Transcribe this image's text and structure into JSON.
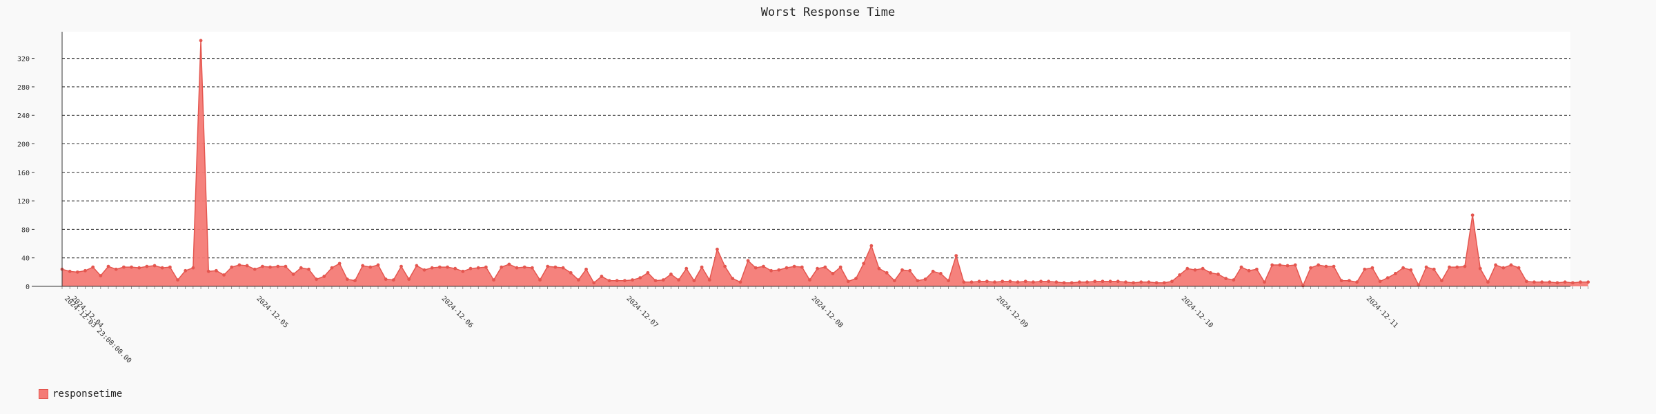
{
  "chart_data": {
    "type": "area",
    "title": "Worst Response Time",
    "xlabel": "",
    "ylabel": "",
    "ylim": [
      0,
      345
    ],
    "yticks": [
      0,
      40,
      80,
      120,
      160,
      200,
      240,
      280,
      320
    ],
    "grid": "horizontal dashed",
    "legend_position": "bottom-left",
    "x_start_label": "2024-12-03 23:00:00.00",
    "day_labels": [
      "2024-12-04",
      "2024-12-05",
      "2024-12-06",
      "2024-12-07",
      "2024-12-08",
      "2024-12-09",
      "2024-12-10",
      "2024-12-11"
    ],
    "x_hours_note": "one point per hour starting 2024-12-03 23:00",
    "series": [
      {
        "name": "responsetime",
        "color": "#f47b76",
        "line_color": "#e4564f",
        "values": [
          24,
          21,
          20,
          22,
          27,
          15,
          28,
          24,
          27,
          27,
          26,
          28,
          29,
          26,
          27,
          9,
          22,
          26,
          345,
          21,
          22,
          16,
          27,
          30,
          29,
          24,
          28,
          27,
          28,
          28,
          17,
          26,
          24,
          10,
          14,
          26,
          32,
          10,
          8,
          29,
          27,
          30,
          10,
          9,
          28,
          10,
          29,
          23,
          26,
          27,
          27,
          25,
          21,
          25,
          26,
          27,
          9,
          27,
          31,
          26,
          27,
          26,
          9,
          28,
          27,
          26,
          19,
          9,
          24,
          5,
          14,
          8,
          8,
          8,
          9,
          12,
          19,
          8,
          9,
          17,
          9,
          25,
          8,
          27,
          9,
          52,
          28,
          11,
          6,
          36,
          26,
          28,
          22,
          23,
          26,
          28,
          27,
          9,
          25,
          27,
          18,
          27,
          7,
          11,
          32,
          57,
          25,
          19,
          8,
          23,
          22,
          8,
          10,
          21,
          18,
          8,
          43,
          6,
          6,
          7,
          7,
          6,
          7,
          7,
          6,
          7,
          6,
          7,
          7,
          6,
          5,
          5,
          6,
          6,
          7,
          7,
          7,
          7,
          6,
          5,
          6,
          6,
          5,
          5,
          7,
          16,
          25,
          23,
          25,
          19,
          17,
          11,
          9,
          27,
          22,
          24,
          6,
          30,
          30,
          29,
          30,
          1,
          26,
          30,
          28,
          28,
          8,
          8,
          6,
          24,
          26,
          7,
          12,
          18,
          26,
          23,
          2,
          27,
          24,
          8,
          27,
          27,
          28,
          100,
          25,
          6,
          30,
          26,
          30,
          26,
          7,
          6,
          6,
          6,
          5,
          6,
          5,
          6,
          6
        ]
      }
    ]
  },
  "legend": {
    "label": "responsetime"
  }
}
